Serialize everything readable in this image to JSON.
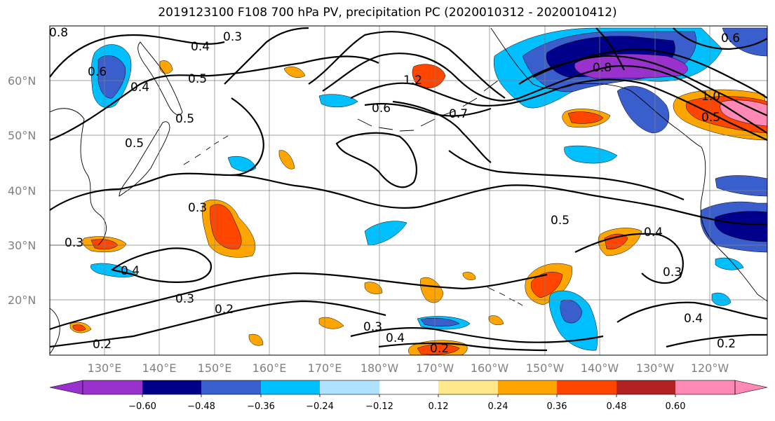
{
  "title": "2019123100 F108 700 hPa PV, precipitation PC (2020010312 - 2020010412)",
  "latitude_labels": [
    "60°N",
    "50°N",
    "40°N",
    "30°N",
    "20°N"
  ],
  "longitude_labels": [
    "130°E",
    "140°E",
    "150°E",
    "160°E",
    "170°E",
    "180°W",
    "170°W",
    "160°W",
    "150°W",
    "140°W",
    "130°W",
    "120°W"
  ],
  "colorbar": {
    "tick_labels": [
      "−0.60",
      "−0.48",
      "−0.36",
      "−0.24",
      "−0.12",
      "0.12",
      "0.24",
      "0.36",
      "0.48",
      "0.60"
    ],
    "colors": [
      "#9932cc",
      "#00008b",
      "#3a5fcd",
      "#00bfff",
      "#b0e2ff",
      "#ffffff",
      "#ffe88a",
      "#ffa500",
      "#ff4500",
      "#b22222",
      "#ff88b4"
    ]
  },
  "contour_labels": [
    {
      "text": "0.8"
    },
    {
      "text": "0.6"
    },
    {
      "text": "0.4"
    },
    {
      "text": "0.3"
    },
    {
      "text": "0.5"
    },
    {
      "text": "0.4"
    },
    {
      "text": "0.5"
    },
    {
      "text": "0.5"
    },
    {
      "text": "1.2"
    },
    {
      "text": "0.6"
    },
    {
      "text": "0.7"
    },
    {
      "text": "0.8"
    },
    {
      "text": "1.0"
    },
    {
      "text": "0.5"
    },
    {
      "text": "0.3"
    },
    {
      "text": "0.3"
    },
    {
      "text": "0.4"
    },
    {
      "text": "0.3"
    },
    {
      "text": "0.2"
    },
    {
      "text": "0.5"
    },
    {
      "text": "0.4"
    },
    {
      "text": "0.3"
    },
    {
      "text": "0.4"
    },
    {
      "text": "0.2"
    },
    {
      "text": "0.3"
    },
    {
      "text": "0.4"
    },
    {
      "text": "0.2"
    },
    {
      "text": "0.2"
    },
    {
      "text": "0.6"
    }
  ]
}
